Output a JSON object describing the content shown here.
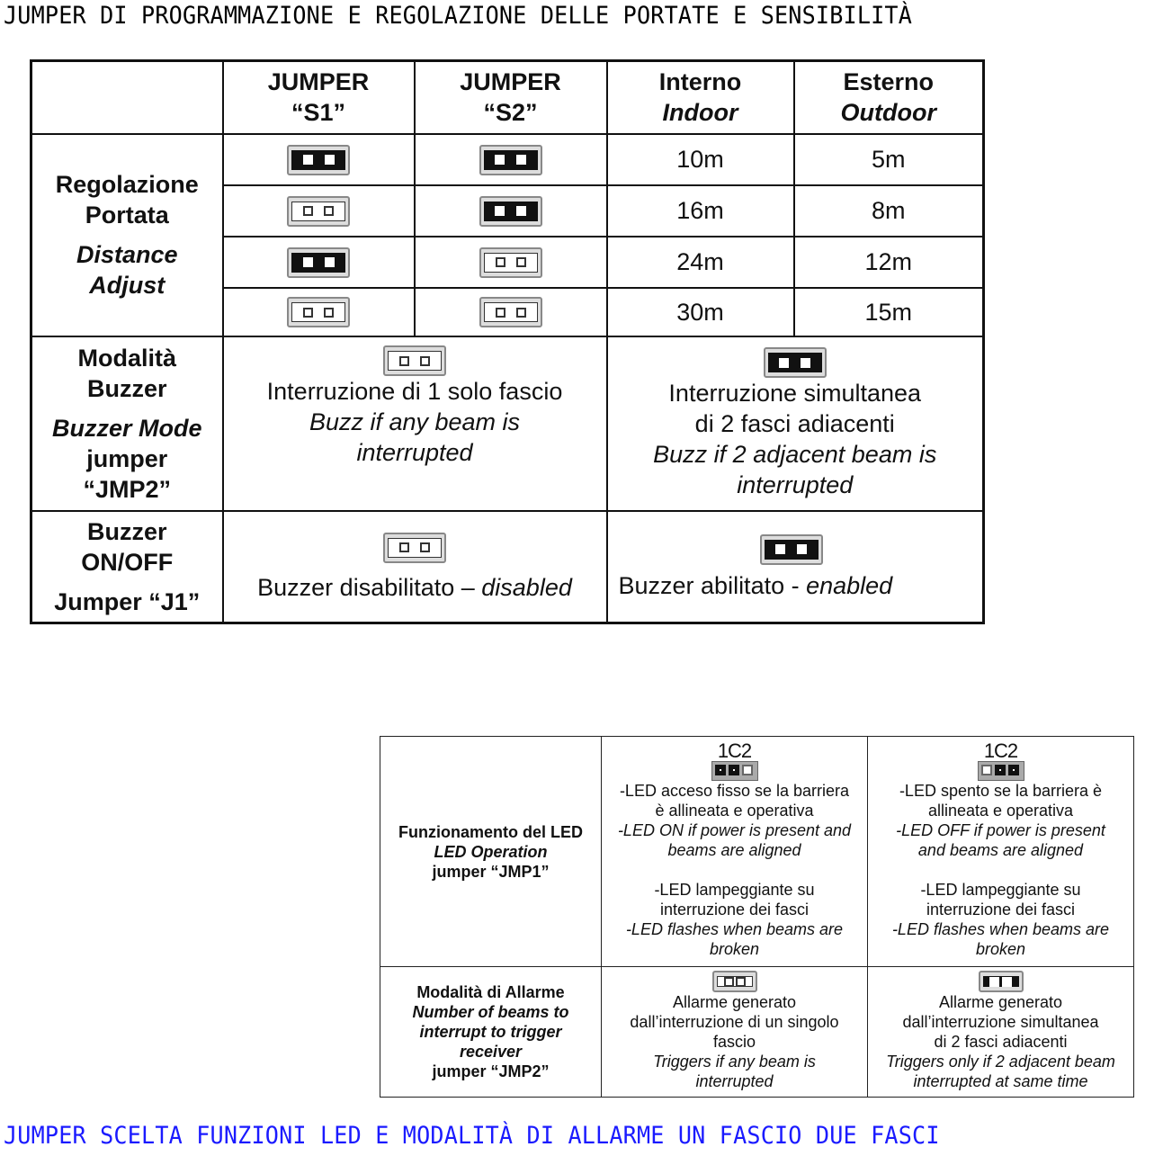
{
  "title_top": "JUMPER DI PROGRAMMAZIONE E REGOLAZIONE DELLE PORTATE E SENSIBILITÀ",
  "title_bottom": "JUMPER SCELTA FUNZIONI LED E MODALITÀ DI ALLARME UN FASCIO DUE FASCI",
  "top_table": {
    "header": {
      "s1": [
        "JUMPER",
        "“S1”"
      ],
      "s2": [
        "JUMPER",
        "“S2”"
      ],
      "indoor": [
        "Interno",
        "Indoor"
      ],
      "outdoor": [
        "Esterno",
        "Outdoor"
      ]
    },
    "distance_label": [
      "Regolazione",
      "Portata",
      "Distance",
      "Adjust"
    ],
    "rows": [
      {
        "s1": "closed",
        "s2": "closed",
        "indoor": "10m",
        "outdoor": "5m"
      },
      {
        "s1": "open",
        "s2": "closed",
        "indoor": "16m",
        "outdoor": "8m"
      },
      {
        "s1": "closed",
        "s2": "open",
        "indoor": "24m",
        "outdoor": "12m"
      },
      {
        "s1": "open",
        "s2": "open",
        "indoor": "30m",
        "outdoor": "15m"
      }
    ],
    "buzzer_mode": {
      "label": [
        "Modalità",
        "Buzzer",
        "Buzzer Mode",
        "jumper",
        "“JMP2”"
      ],
      "open": {
        "state": "open",
        "lines": [
          "Interruzione di 1 solo fascio",
          "Buzz if any beam is",
          "interrupted"
        ]
      },
      "closed": {
        "state": "closed",
        "lines": [
          "Interruzione simultanea",
          "di 2 fasci adiacenti",
          "Buzz if 2 adjacent beam is",
          "interrupted"
        ]
      }
    },
    "buzzer_onoff": {
      "label": [
        "Buzzer",
        "ON/OFF",
        "Jumper “J1”"
      ],
      "open": {
        "state": "open",
        "text": "Buzzer disabilitato – ",
        "italic": "disabled"
      },
      "closed": {
        "state": "closed",
        "text": "Buzzer abilitato - ",
        "italic": "enabled"
      }
    }
  },
  "bottom_table": {
    "led": {
      "label": [
        "Funzionamento del LED",
        "LED Operation",
        "jumper “JMP1”"
      ],
      "jumper_label": "1C2",
      "left": {
        "pins": [
          "closed",
          "closed",
          "open"
        ],
        "lines": [
          "-LED acceso fisso se la barriera",
          "è allineata e operativa",
          "-LED ON if power is present and",
          "beams are aligned",
          "",
          "-LED lampeggiante su",
          "interruzione dei fasci",
          "-LED flashes when beams are",
          "broken"
        ]
      },
      "right": {
        "pins": [
          "open",
          "closed",
          "closed"
        ],
        "lines": [
          "-LED spento se la barriera è",
          "allineata e operativa",
          "-LED OFF if power is present",
          "and beams are aligned",
          "",
          "-LED lampeggiante su",
          "interruzione dei fasci",
          "-LED flashes when beams are",
          "broken"
        ]
      }
    },
    "alarm": {
      "label": [
        "Modalità di Allarme",
        "Number of beams to",
        "interrupt to trigger",
        "receiver",
        "jumper “JMP2”"
      ],
      "left": {
        "state": "open",
        "lines": [
          "Allarme generato",
          "dall’interruzione di un singolo",
          "fascio",
          "Triggers if any beam is",
          "interrupted"
        ]
      },
      "right": {
        "state": "closed",
        "lines": [
          "Allarme generato",
          "dall’interruzione simultanea",
          "di 2 fasci adiacenti",
          "Triggers only if 2 adjacent beam",
          "interrupted at same time"
        ]
      }
    }
  }
}
